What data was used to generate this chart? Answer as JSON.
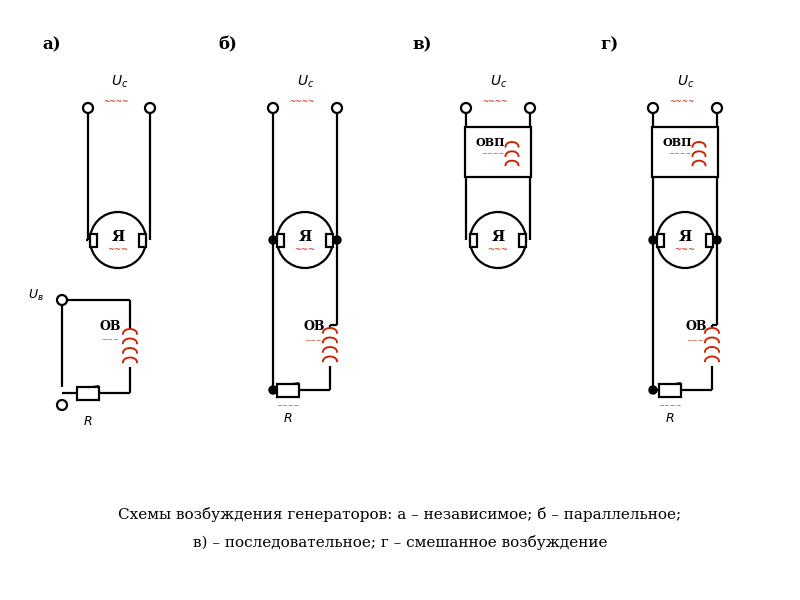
{
  "caption_line1": "Схемы возбуждения генераторов: а – независимое; б – параллельное;",
  "caption_line2": "в) – последовательное; г – смешанное возбуждение",
  "caption_fontsize": 11,
  "labels": [
    "а)",
    "б)",
    "в)",
    "г)"
  ],
  "text_color": "#000000",
  "red_color": "#cc2200",
  "line_color": "#000000",
  "line_width": 1.6,
  "bg_color": "#ffffff"
}
